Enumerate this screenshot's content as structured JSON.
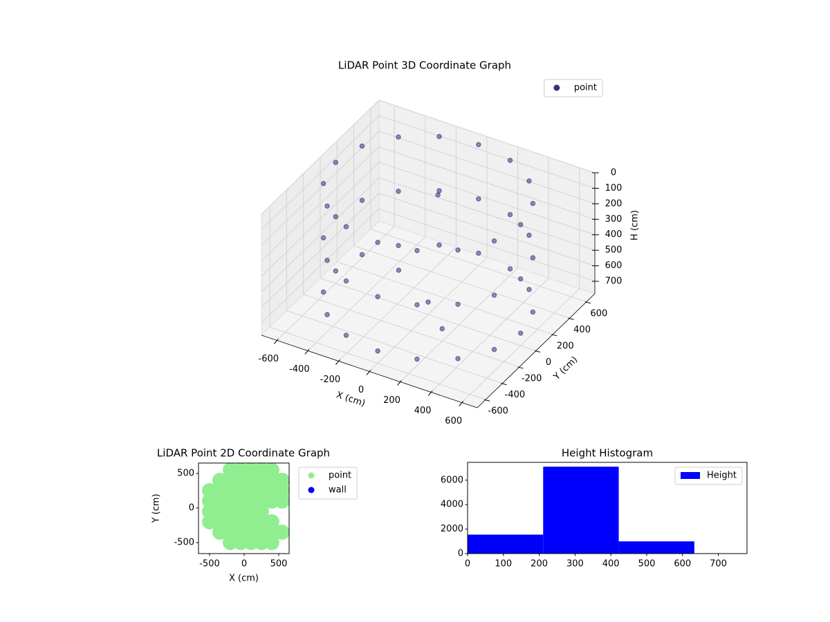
{
  "chart_data": [
    {
      "type": "scatter3d",
      "title": "LiDAR Point 3D Coordinate Graph",
      "xlabel": "X (cm)",
      "ylabel": "Y (cm)",
      "zlabel": "H (cm)",
      "xlim": [
        -700,
        700
      ],
      "ylim": [
        -700,
        700
      ],
      "zlim": [
        0,
        780
      ],
      "invert_z": true,
      "xticks": [
        -600,
        -400,
        -200,
        0,
        200,
        400,
        600
      ],
      "yticks": [
        -600,
        -400,
        -200,
        0,
        200,
        400,
        600
      ],
      "zticks": [
        0,
        100,
        200,
        300,
        400,
        500,
        600,
        700
      ],
      "legend": "upper right",
      "series": [
        {
          "name": "point",
          "color": "#3e2f7a",
          "x": [
            600,
            554,
            424,
            230,
            0,
            -230,
            -424,
            -554,
            -600,
            -554,
            -424,
            -230,
            0,
            230,
            424,
            554,
            600,
            554,
            424,
            230,
            0,
            -230,
            -424,
            -554,
            -600,
            -554,
            -424,
            -230,
            0,
            230,
            424,
            554,
            600,
            554,
            424,
            230,
            0,
            -230,
            -424,
            -554,
            -600,
            -554,
            -424,
            -230,
            0,
            230,
            424,
            554,
            0,
            -300,
            200,
            -100
          ],
          "y": [
            0,
            230,
            424,
            554,
            600,
            554,
            424,
            230,
            0,
            -230,
            -424,
            -554,
            -600,
            -554,
            -424,
            -230,
            0,
            230,
            424,
            554,
            600,
            554,
            424,
            230,
            0,
            -230,
            -424,
            -554,
            -600,
            -554,
            -424,
            -230,
            0,
            230,
            424,
            554,
            600,
            554,
            424,
            230,
            0,
            -230,
            -424,
            -554,
            -600,
            -554,
            -424,
            -230,
            0,
            200,
            -200,
            300
          ],
          "z": [
            0,
            0,
            0,
            0,
            0,
            0,
            0,
            0,
            0,
            0,
            0,
            0,
            0,
            0,
            0,
            0,
            350,
            350,
            350,
            350,
            350,
            350,
            350,
            350,
            350,
            350,
            350,
            350,
            350,
            350,
            350,
            350,
            700,
            700,
            700,
            700,
            700,
            700,
            700,
            700,
            700,
            700,
            700,
            700,
            700,
            700,
            700,
            700,
            700,
            700,
            700,
            200
          ]
        }
      ]
    },
    {
      "type": "scatter",
      "title": "LiDAR Point 2D Coordinate Graph",
      "xlabel": "X (cm)",
      "ylabel": "Y (cm)",
      "xlim": [
        -660,
        650
      ],
      "ylim": [
        -660,
        650
      ],
      "xticks": [
        -500,
        0,
        500
      ],
      "yticks": [
        -500,
        0,
        500
      ],
      "legend": "outside upper right",
      "series": [
        {
          "name": "point",
          "color": "#90ee90",
          "x": [
            -500,
            -500,
            -500,
            -500,
            -350,
            -350,
            -350,
            -350,
            -350,
            -350,
            -200,
            -200,
            -200,
            -200,
            -200,
            -200,
            -200,
            -200,
            -50,
            -50,
            -50,
            -50,
            -50,
            -50,
            -50,
            -50,
            100,
            100,
            100,
            100,
            100,
            100,
            100,
            100,
            250,
            250,
            250,
            250,
            250,
            250,
            250,
            250,
            400,
            400,
            400,
            400,
            400,
            400,
            400,
            550,
            550,
            550,
            550
          ],
          "y": [
            -200,
            -50,
            100,
            250,
            -350,
            -200,
            -50,
            100,
            250,
            400,
            -500,
            -350,
            -200,
            -50,
            100,
            250,
            400,
            550,
            -500,
            -350,
            -200,
            -50,
            100,
            250,
            400,
            550,
            -500,
            -350,
            -200,
            -50,
            100,
            250,
            400,
            550,
            -500,
            -350,
            -200,
            -50,
            100,
            250,
            400,
            550,
            -500,
            -350,
            -200,
            100,
            250,
            400,
            550,
            -350,
            100,
            250,
            400
          ]
        },
        {
          "name": "wall",
          "color": "#0000ff",
          "x": [],
          "y": []
        }
      ]
    },
    {
      "type": "histogram",
      "title": "Height Histogram",
      "bins": [
        0,
        211,
        422,
        633
      ],
      "xlim": [
        0,
        780
      ],
      "ylim": [
        0,
        7455
      ],
      "xticks": [
        0,
        100,
        200,
        300,
        400,
        500,
        600,
        700
      ],
      "yticks": [
        0,
        2000,
        4000,
        6000
      ],
      "legend": "upper right",
      "series": [
        {
          "name": "Height",
          "color": "#0000ff",
          "values": [
            1550,
            7100,
            1000
          ]
        }
      ]
    }
  ]
}
